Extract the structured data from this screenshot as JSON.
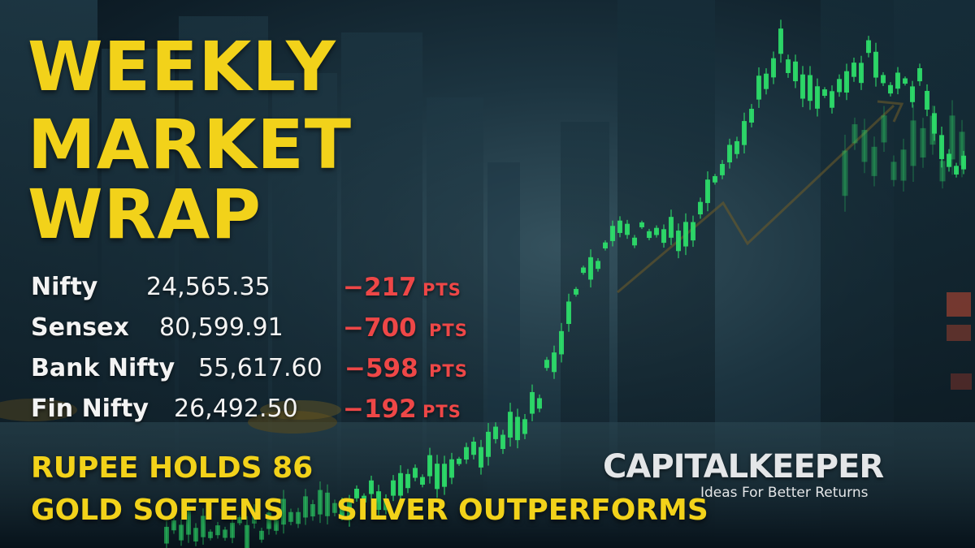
{
  "title_lines": [
    "WEEKLY",
    "MARKET",
    "WRAP"
  ],
  "indices": [
    {
      "name": "Nifty",
      "value": "24,565.35",
      "change": "−217",
      "unit": "PTS"
    },
    {
      "name": "Sensex",
      "value": "80,599.91",
      "change": "−700",
      "unit": "PTS"
    },
    {
      "name": "Bank Nifty",
      "value": "55,617.60",
      "change": "−598",
      "unit": "PTS"
    },
    {
      "name": "Fin Nifty",
      "value": "26,492.50",
      "change": "−192",
      "unit": "PTS"
    }
  ],
  "highlights": {
    "line_1": "RUPEE HOLDS 86",
    "line_2a": "GOLD SOFTENS",
    "line_2b": "SILVER OUTPERFORMS"
  },
  "brand": {
    "name": "CAPITALKEEPER",
    "tagline": "Ideas For Better Returns"
  },
  "colors": {
    "title": "#f2d21a",
    "negative": "#ee4747",
    "candle_up": "#2ee06a",
    "text": "#f3f3f3"
  }
}
